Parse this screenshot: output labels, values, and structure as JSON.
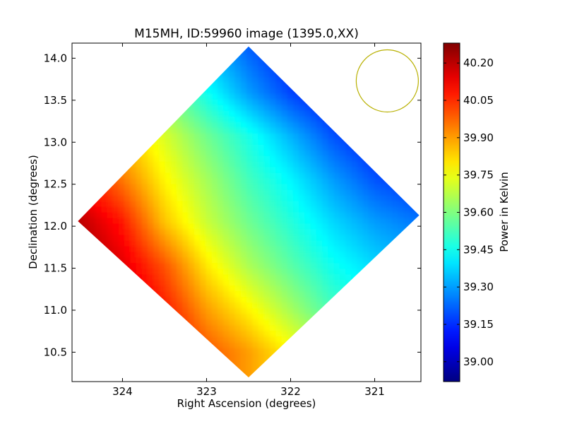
{
  "chart_data": {
    "type": "heatmap",
    "title": "M15MH, ID:59960 image (1395.0,XX)",
    "xlabel": "Right Ascension (degrees)",
    "ylabel": "Declination (degrees)",
    "colorbar_label": "Power in Kelvin",
    "xlim": [
      324.6,
      320.45
    ],
    "ylim": [
      10.15,
      14.18
    ],
    "x_ticks": [
      324,
      323,
      322,
      321
    ],
    "x_tick_labels": [
      "324",
      "323",
      "322",
      "321"
    ],
    "y_ticks": [
      10.5,
      11.0,
      11.5,
      12.0,
      12.5,
      13.0,
      13.5,
      14.0
    ],
    "y_tick_labels": [
      "10.5",
      "11.0",
      "11.5",
      "12.0",
      "12.5",
      "13.0",
      "13.5",
      "14.0"
    ],
    "color_range": [
      38.92,
      40.28
    ],
    "colormap": "jet",
    "colorbar_ticks": [
      39.0,
      39.15,
      39.3,
      39.45,
      39.6,
      39.75,
      39.9,
      40.05,
      40.2
    ],
    "colorbar_tick_labels": [
      "39.00",
      "39.15",
      "39.30",
      "39.45",
      "39.60",
      "39.75",
      "39.90",
      "40.05",
      "40.20"
    ],
    "map_footprint": {
      "shape": "diamond",
      "vertices_ra_dec": [
        [
          322.5,
          14.14
        ],
        [
          320.47,
          12.13
        ],
        [
          322.5,
          10.2
        ],
        [
          324.53,
          12.06
        ]
      ]
    },
    "map_values": {
      "grid_ra": [
        324.5,
        324.0,
        323.5,
        323.0,
        322.5,
        322.0,
        321.5,
        321.0,
        320.5
      ],
      "grid_dec": [
        14.1,
        13.5,
        13.0,
        12.5,
        12.0,
        11.5,
        11.0,
        10.5
      ],
      "values": [
        [
          39.75,
          39.62,
          39.5,
          39.35,
          39.22,
          39.12,
          39.05,
          39.0,
          38.97
        ],
        [
          39.9,
          39.78,
          39.6,
          39.45,
          39.3,
          39.18,
          39.1,
          39.05,
          39.02
        ],
        [
          40.0,
          39.85,
          39.72,
          39.58,
          39.46,
          39.33,
          39.2,
          39.12,
          39.08
        ],
        [
          40.1,
          39.95,
          39.78,
          39.65,
          39.52,
          39.42,
          39.3,
          39.2,
          39.15
        ],
        [
          40.2,
          40.08,
          39.85,
          39.7,
          39.58,
          39.48,
          39.38,
          39.3,
          39.25
        ],
        [
          40.25,
          40.15,
          40.0,
          39.8,
          39.66,
          39.55,
          39.45,
          39.38,
          39.33
        ],
        [
          40.28,
          40.22,
          40.08,
          39.9,
          39.78,
          39.65,
          39.52,
          39.45,
          39.4
        ],
        [
          40.28,
          40.25,
          40.15,
          40.0,
          39.9,
          39.78,
          39.65,
          39.55,
          39.5
        ]
      ]
    },
    "beam": {
      "center_ra_dec": [
        320.85,
        13.73
      ],
      "radius_deg": 0.37,
      "color": "#b8b000"
    }
  }
}
